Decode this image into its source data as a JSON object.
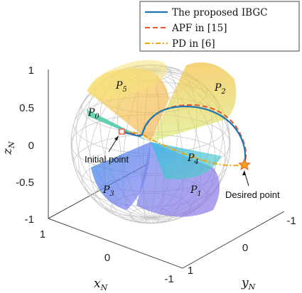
{
  "chart_data": {
    "type": "3d-line",
    "xlabel": "x",
    "xlabel_sub": "N",
    "ylabel": "y",
    "ylabel_sub": "N",
    "zlabel": "z",
    "zlabel_sub": "N",
    "xlim": [
      -1,
      1
    ],
    "ylim": [
      -1,
      1
    ],
    "zlim": [
      -1,
      1
    ],
    "x_ticks": [
      "1",
      "0",
      "-1"
    ],
    "y_ticks": [
      "1",
      "0",
      "-1"
    ],
    "z_ticks": [
      "1",
      "0.5",
      "0",
      "-0.5",
      "-1"
    ],
    "grid": true,
    "legend_position": "top-right",
    "series": [
      {
        "name": "The proposed IBGC",
        "color": "#1f77b4",
        "style": "solid"
      },
      {
        "name": "APF in [15]",
        "color": "#e8532b",
        "style": "dashed"
      },
      {
        "name": "PD in [6]",
        "color": "#f0a30a",
        "style": "dash-dot"
      }
    ],
    "cones": [
      {
        "label": "P",
        "sub": "1",
        "color": "#7a6fe0"
      },
      {
        "label": "P",
        "sub": "2",
        "color": "#e9c23a"
      },
      {
        "label": "P",
        "sub": "3",
        "color": "#5a6be8"
      },
      {
        "label": "P",
        "sub": "4",
        "color": "#2ea8e0"
      },
      {
        "label": "P",
        "sub": "5",
        "color": "#f2d24a"
      },
      {
        "label": "P",
        "sub": "0",
        "color": "#3fc9a0"
      }
    ],
    "annotations": [
      {
        "text": "Initial point"
      },
      {
        "text": "Desired point"
      }
    ]
  }
}
